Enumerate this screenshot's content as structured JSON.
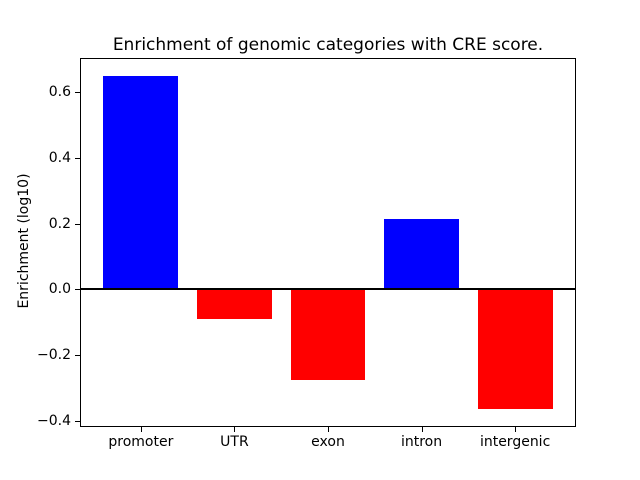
{
  "chart_data": {
    "type": "bar",
    "title": "Enrichment of genomic categories with CRE score.",
    "xlabel": "",
    "ylabel": "Enrichment (log10)",
    "categories": [
      "promoter",
      "UTR",
      "exon",
      "intron",
      "intergenic"
    ],
    "values": [
      0.65,
      -0.09,
      -0.275,
      0.215,
      -0.365
    ],
    "bar_colors": [
      "#0000ff",
      "#ff0000",
      "#ff0000",
      "#0000ff",
      "#ff0000"
    ],
    "bar_width": 0.8,
    "xlim": [
      -0.64,
      4.64
    ],
    "ylim": [
      -0.416,
      0.702
    ],
    "yticks": [
      0.6,
      0.4,
      0.2,
      0.0,
      -0.2,
      -0.4
    ],
    "ytick_labels": [
      "0.6",
      "0.4",
      "0.2",
      "0.0",
      "−0.2",
      "−0.4"
    ],
    "zero_line": true,
    "grid": false,
    "legend": "none",
    "background_color": "#ffffff",
    "axis_color": "#000000"
  }
}
